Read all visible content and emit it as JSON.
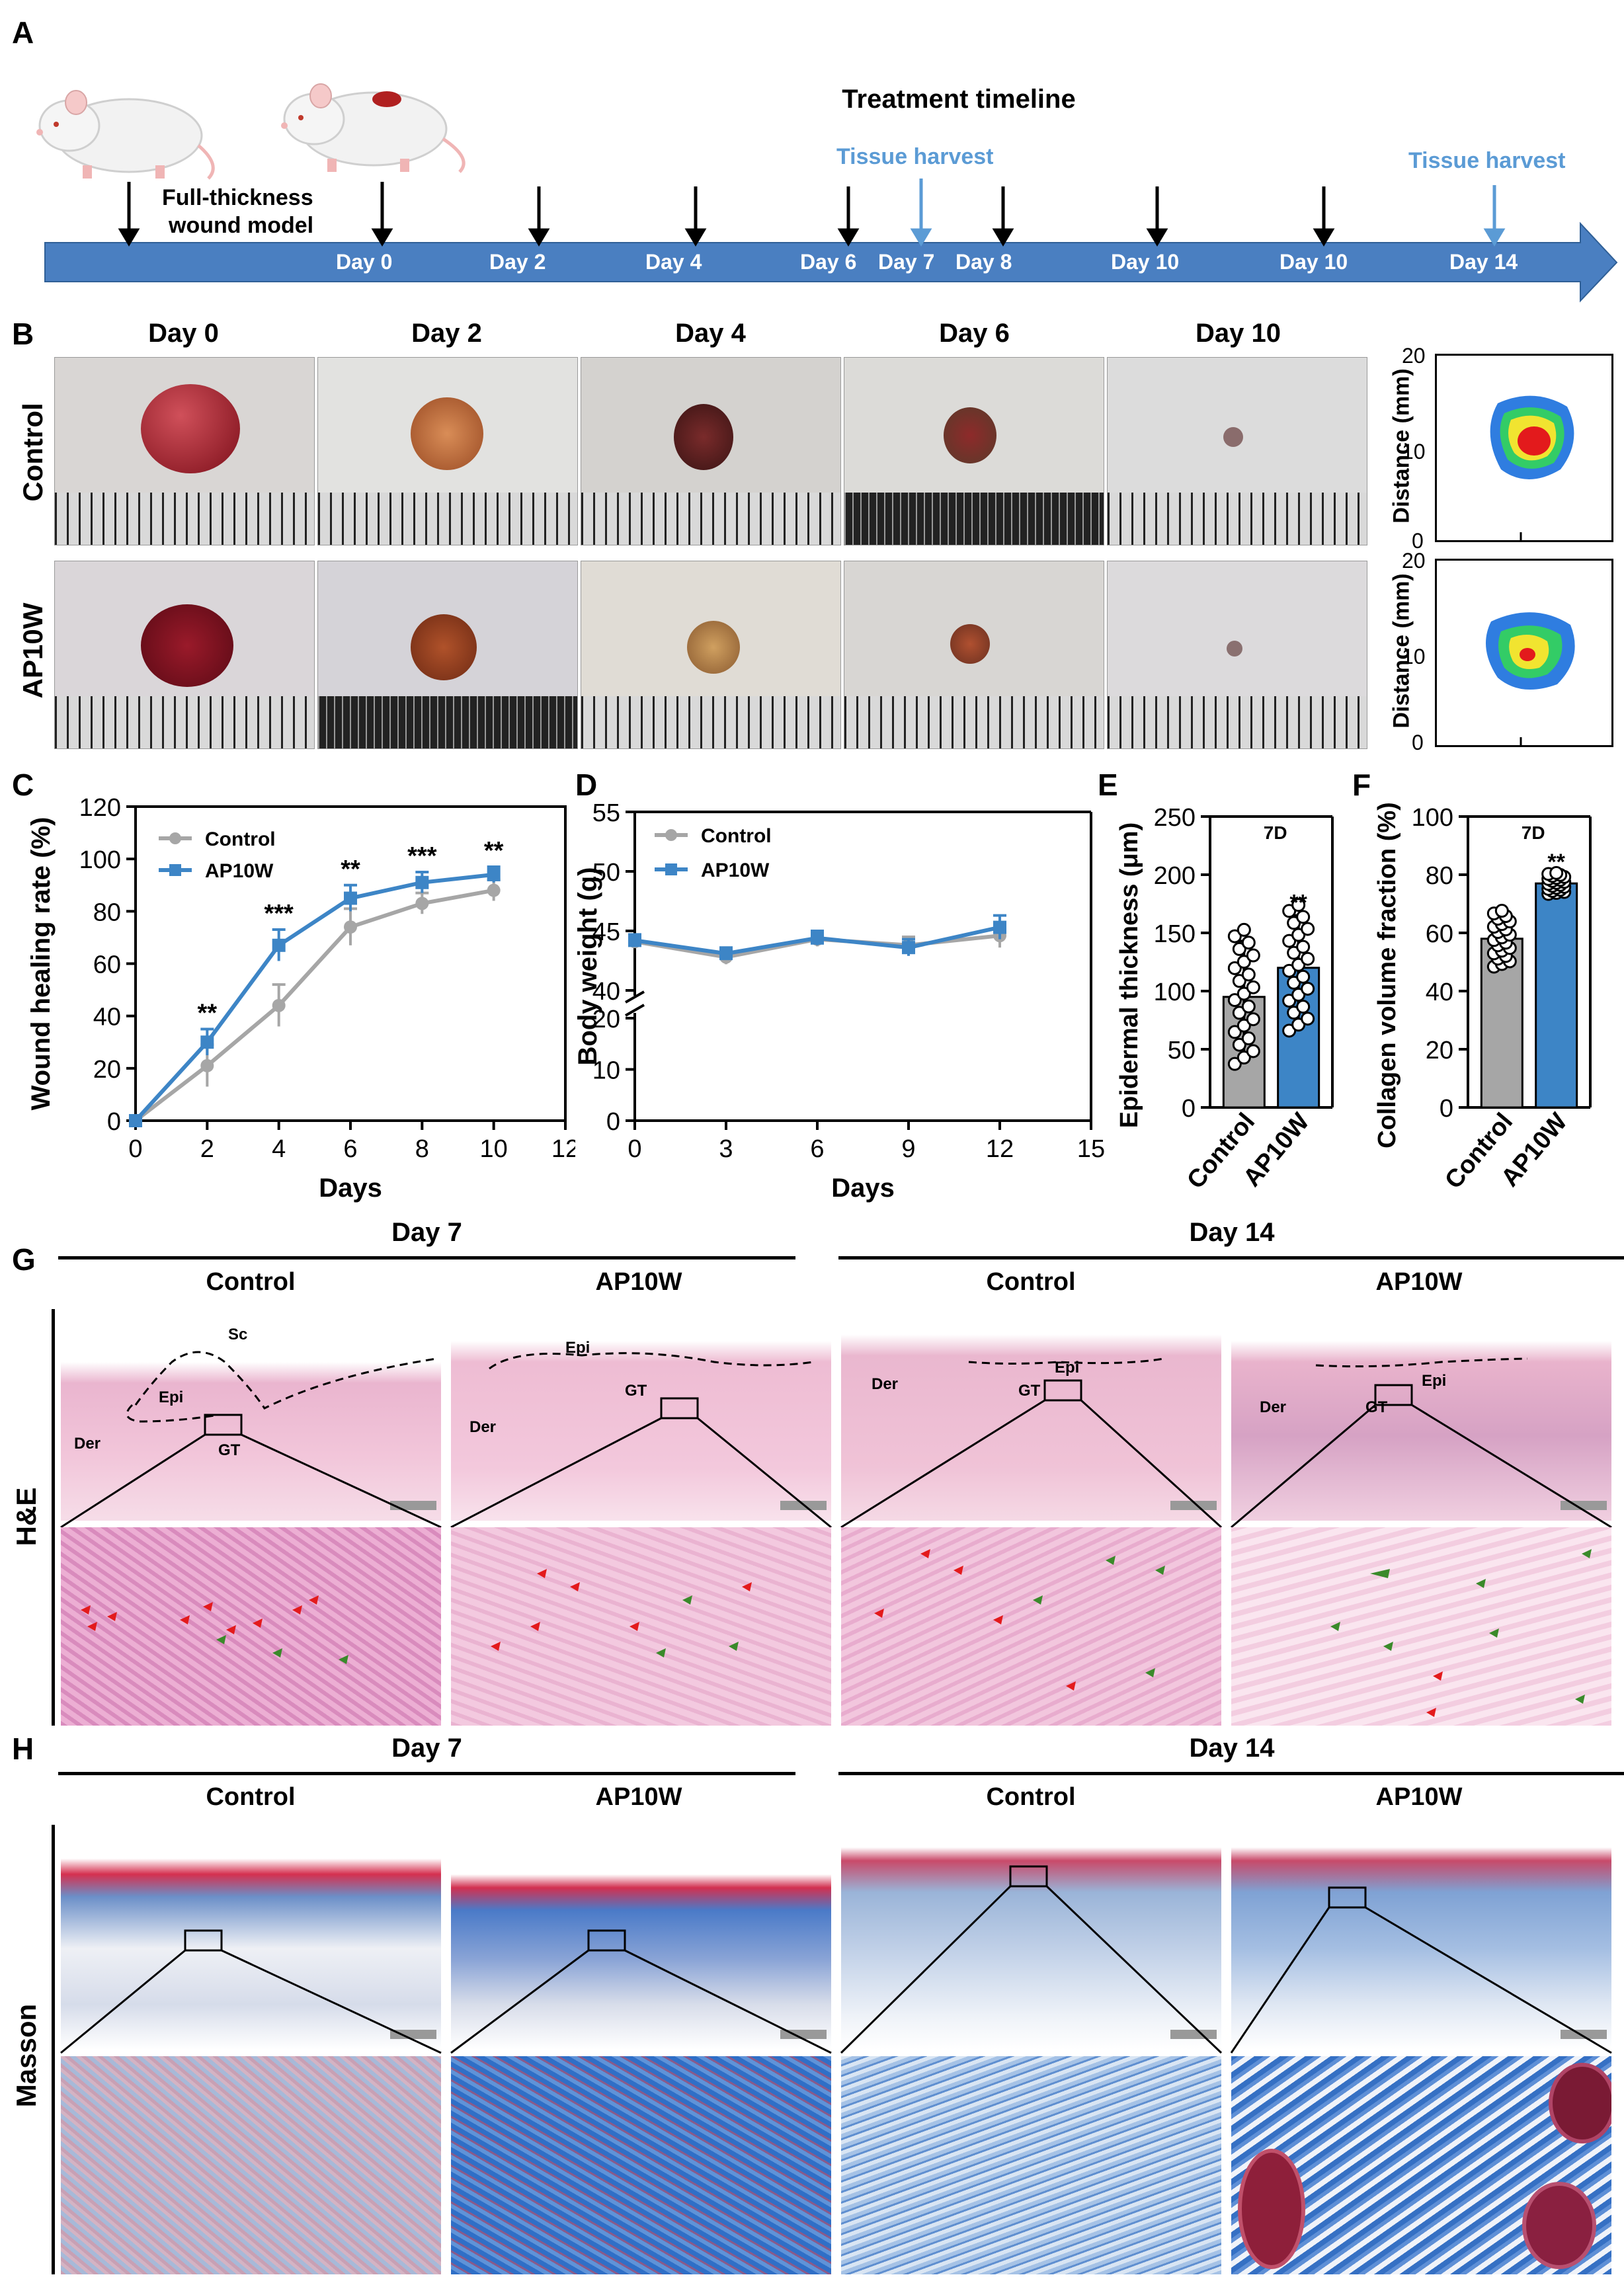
{
  "panels": {
    "A": "A",
    "B": "B",
    "C": "C",
    "D": "D",
    "E": "E",
    "F": "F",
    "G": "G",
    "H": "H"
  },
  "timeline": {
    "title": "Treatment timeline",
    "model_label_1": "Full-thickness",
    "model_label_2": "wound model",
    "days": [
      "Day 0",
      "Day 2",
      "Day 4",
      "Day 6",
      "Day 7",
      "Day 8",
      "Day 10",
      "Day 10",
      "Day 14"
    ],
    "harvest_1": "Tissue harvest",
    "harvest_2": "Tissue harvest",
    "arrow_color": "#4a7fc1",
    "harvest_color": "#5b9bd5"
  },
  "wound_photos": {
    "day_headers": [
      "Day 0",
      "Day 2",
      "Day 4",
      "Day 6",
      "Day 10"
    ],
    "rows": [
      "Control",
      "AP10W"
    ],
    "heatmap_ylabel": "Distance (mm)",
    "heatmap_ticks": [
      "20",
      "10",
      "0"
    ]
  },
  "histology": {
    "G": {
      "day7": "Day 7",
      "day14": "Day 14",
      "groups": [
        "Control",
        "AP10W",
        "Control",
        "AP10W"
      ],
      "stain": "H&E",
      "labels": {
        "sc": "Sc",
        "epi": "Epi",
        "der": "Der",
        "gt": "GT"
      }
    },
    "H": {
      "day7": "Day 7",
      "day14": "Day 14",
      "groups": [
        "Control",
        "AP10W",
        "Control",
        "AP10W"
      ],
      "stain": "Masson"
    }
  },
  "chart_data": [
    {
      "id": "C",
      "type": "line",
      "xlabel": "Days",
      "ylabel": "Wound healing rate (%)",
      "xlim": [
        0,
        12
      ],
      "ylim": [
        0,
        120
      ],
      "xticks": [
        0,
        2,
        4,
        6,
        8,
        10,
        12
      ],
      "yticks": [
        0,
        20,
        40,
        60,
        80,
        100,
        120
      ],
      "x": [
        0,
        2,
        4,
        6,
        8,
        10
      ],
      "series": [
        {
          "name": "Control",
          "color": "#a6a6a6",
          "values": [
            0,
            21,
            44,
            74,
            83,
            88
          ],
          "err": [
            0,
            8,
            8,
            7,
            4,
            4
          ]
        },
        {
          "name": "AP10W",
          "color": "#3d85c6",
          "values": [
            0,
            30,
            67,
            85,
            91,
            94
          ],
          "err": [
            0,
            5,
            6,
            5,
            4,
            3
          ]
        }
      ],
      "annotations": [
        {
          "x": 2,
          "text": "**"
        },
        {
          "x": 4,
          "text": "***"
        },
        {
          "x": 6,
          "text": "**"
        },
        {
          "x": 8,
          "text": "***"
        },
        {
          "x": 10,
          "text": "**"
        }
      ],
      "legend": "top-left"
    },
    {
      "id": "D",
      "type": "line",
      "xlabel": "Days",
      "ylabel": "Body weight (g)",
      "xlim": [
        0,
        15
      ],
      "xticks": [
        0,
        3,
        6,
        9,
        12,
        15
      ],
      "yticks_upper": [
        40,
        45,
        50,
        55
      ],
      "yticks_lower": [
        0,
        10,
        20
      ],
      "axis_break": true,
      "x": [
        0,
        3,
        6,
        9,
        12
      ],
      "series": [
        {
          "name": "Control",
          "color": "#a6a6a6",
          "values": [
            44.1,
            42.8,
            44.3,
            43.8,
            44.6
          ],
          "err": [
            0.5,
            0.6,
            0.6,
            0.7,
            1.0
          ]
        },
        {
          "name": "AP10W",
          "color": "#3d85c6",
          "values": [
            44.2,
            43.1,
            44.4,
            43.6,
            45.3
          ],
          "err": [
            0.5,
            0.5,
            0.6,
            0.7,
            1.0
          ]
        }
      ],
      "legend": "top-left"
    },
    {
      "id": "E",
      "type": "bar",
      "ylabel": "Epidermal thickness (μm)",
      "categories": [
        "Control",
        "AP10W"
      ],
      "values": [
        95,
        120
      ],
      "err": [
        48,
        45
      ],
      "colors": [
        "#a6a6a6",
        "#3d85c6"
      ],
      "ylim": [
        0,
        250
      ],
      "yticks": [
        0,
        50,
        100,
        150,
        200,
        250
      ],
      "annotation": "7D",
      "significance": "**"
    },
    {
      "id": "F",
      "type": "bar",
      "ylabel": "Collagen volume fraction (%)",
      "categories": [
        "Control",
        "AP10W"
      ],
      "values": [
        58,
        77
      ],
      "err": [
        8,
        3
      ],
      "colors": [
        "#a6a6a6",
        "#3d85c6"
      ],
      "ylim": [
        0,
        100
      ],
      "yticks": [
        0,
        20,
        40,
        60,
        80,
        100
      ],
      "annotation": "7D",
      "significance": "**"
    }
  ]
}
